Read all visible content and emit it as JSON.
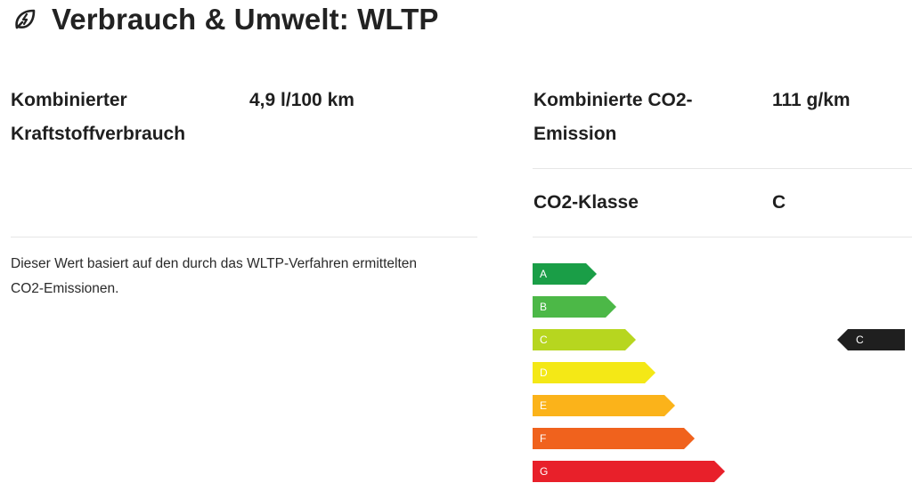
{
  "header": {
    "title": "Verbrauch & Umwelt: WLTP",
    "icon": "leaf-bolt-icon"
  },
  "consumption": {
    "label_line1": "Kombinierter",
    "label_line2": "Kraftstoffverbrauch",
    "value": "4,9 l/100 km",
    "note_line1": "Dieser Wert basiert auf den durch das WLTP-Verfahren ermittelten",
    "note_line2": "CO2-Emissionen."
  },
  "emission": {
    "label_line1": "Kombinierte CO2-",
    "label_line2": "Emission",
    "value": "111 g/km"
  },
  "co2_class": {
    "label": "CO2-Klasse",
    "value": "C"
  },
  "efficiency_scale": {
    "classes": [
      {
        "label": "A",
        "color": "#1a9e47"
      },
      {
        "label": "B",
        "color": "#4cb847"
      },
      {
        "label": "C",
        "color": "#b7d61f"
      },
      {
        "label": "D",
        "color": "#f4e816"
      },
      {
        "label": "E",
        "color": "#fbb31a"
      },
      {
        "label": "F",
        "color": "#f0621d"
      },
      {
        "label": "G",
        "color": "#e8202a"
      }
    ],
    "selected": "C",
    "marker_color": "#1f1f1f"
  }
}
